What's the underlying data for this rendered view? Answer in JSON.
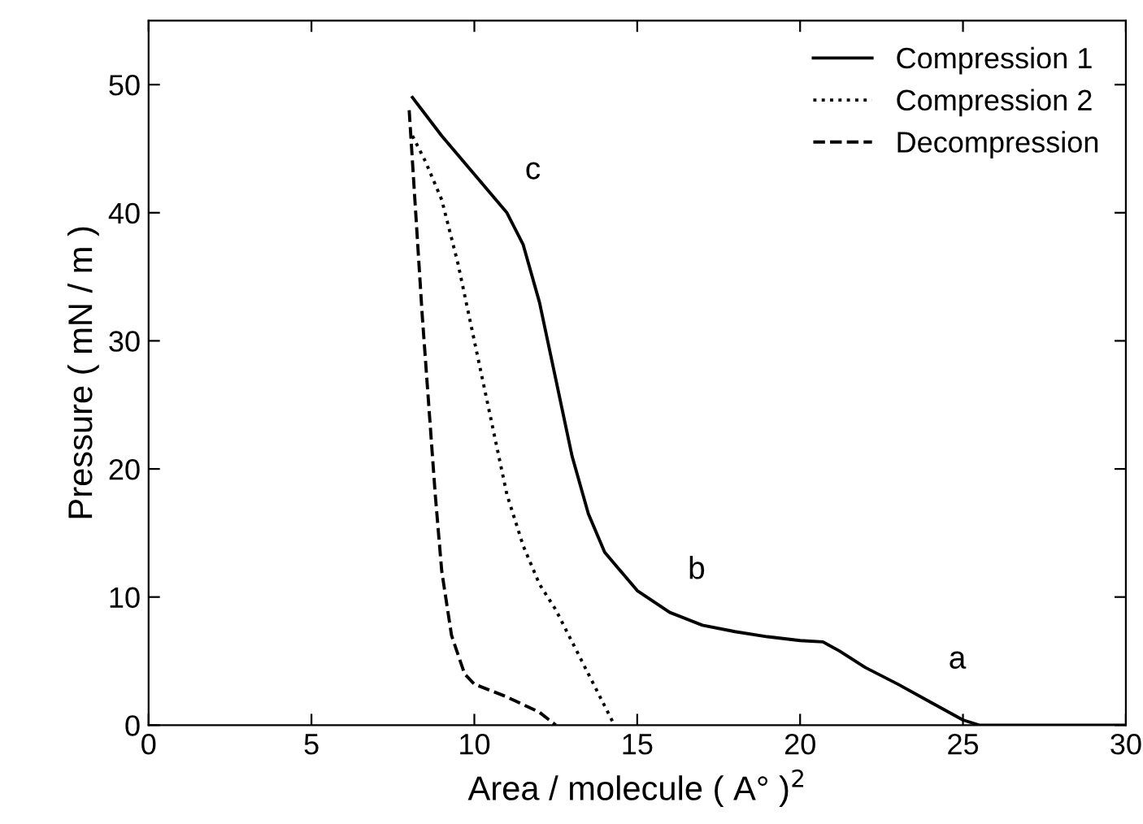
{
  "chart_data": {
    "type": "line",
    "xlabel": "Area / molecule ( A° )$^{2}$",
    "ylabel": "Pressure ( mN / m )",
    "xlim": [
      0,
      30
    ],
    "ylim": [
      0,
      55
    ],
    "xticks": [
      0,
      5,
      10,
      15,
      20,
      25,
      30
    ],
    "yticks": [
      0,
      10,
      20,
      30,
      40,
      50
    ],
    "grid": false,
    "legend": "top right",
    "marker": "none",
    "series": [
      {
        "name": "Compression 1",
        "color": "#000000",
        "line_style": "solid",
        "x": [
          8.1,
          9,
          10,
          11,
          11.5,
          12,
          12.5,
          13,
          13.5,
          14,
          15,
          16,
          17,
          18,
          19,
          20,
          20.7,
          21.2,
          22,
          23,
          24,
          25,
          25.5,
          30
        ],
        "values": [
          49,
          46,
          43,
          40,
          37.5,
          33,
          27,
          21,
          16.5,
          13.5,
          10.5,
          8.8,
          7.8,
          7.3,
          6.9,
          6.6,
          6.5,
          5.8,
          4.5,
          3.2,
          1.8,
          0.4,
          0,
          0
        ]
      },
      {
        "name": "Compression 2",
        "color": "#000000",
        "line_style": "dotted",
        "x": [
          8.1,
          8.5,
          9,
          9.5,
          10,
          10.5,
          11,
          11.5,
          12,
          12.5,
          13,
          13.5,
          14,
          14.3
        ],
        "values": [
          46,
          44,
          41,
          36,
          30,
          24,
          18,
          14,
          11,
          9,
          6.5,
          4,
          1.5,
          0
        ]
      },
      {
        "name": "Decompression",
        "color": "#000000",
        "line_style": "dashed",
        "x": [
          8.0,
          8.2,
          8.4,
          8.6,
          8.8,
          9,
          9.3,
          9.7,
          10,
          11,
          12,
          12.5
        ],
        "values": [
          48,
          40,
          32,
          25,
          18,
          12,
          7,
          4,
          3.2,
          2.2,
          1,
          0
        ]
      }
    ],
    "annotations": [
      {
        "text": "c",
        "x": 11,
        "y": 40
      },
      {
        "text": "b",
        "x": 16,
        "y": 8.8
      },
      {
        "text": "a",
        "x": 24,
        "y": 1.8
      }
    ]
  }
}
